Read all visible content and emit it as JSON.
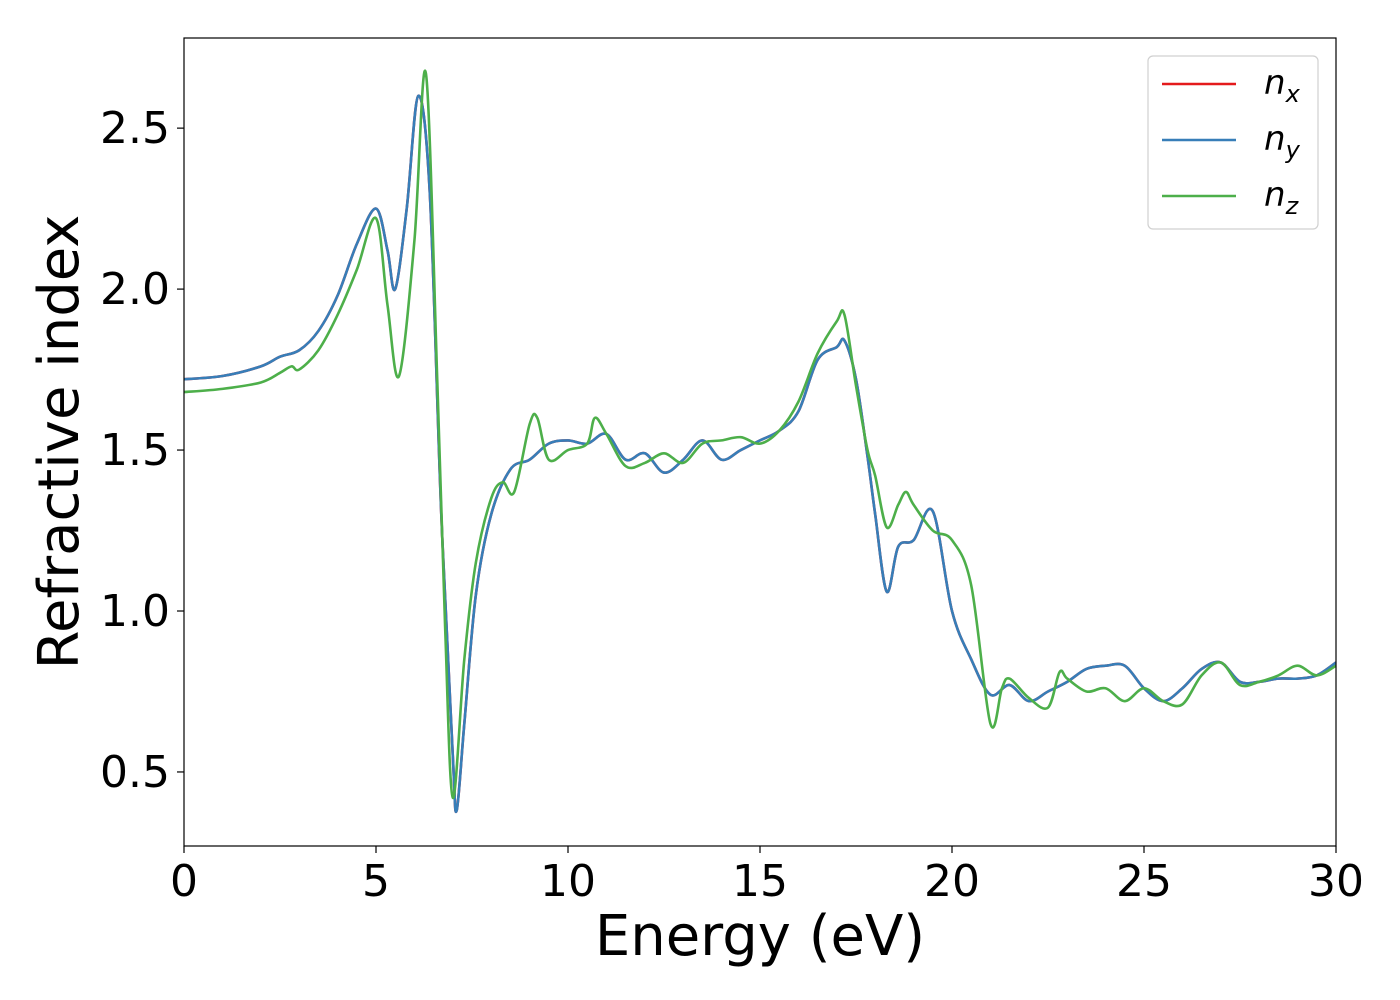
{
  "chart_data": {
    "type": "line",
    "xlabel": "Energy (eV)",
    "ylabel": "Refractive index",
    "xlim": [
      0,
      30
    ],
    "ylim": [
      0.27,
      2.78
    ],
    "xticks": [
      0,
      5,
      10,
      15,
      20,
      25,
      30
    ],
    "xtick_labels": [
      "0",
      "5",
      "10",
      "15",
      "20",
      "25",
      "30"
    ],
    "yticks": [
      0.5,
      1.0,
      1.5,
      2.0,
      2.5
    ],
    "ytick_labels": [
      "0.5",
      "1.0",
      "1.5",
      "2.0",
      "2.5"
    ],
    "grid": false,
    "legend_position": "top-right",
    "series": [
      {
        "name": "n_x",
        "label_base": "n",
        "label_sub": "x",
        "color": "#e41a1c",
        "x": [
          0,
          1,
          2,
          2.5,
          3,
          3.5,
          4,
          4.5,
          5,
          5.3,
          5.5,
          5.8,
          6.1,
          6.4,
          6.7,
          7.0,
          7.1,
          7.3,
          7.6,
          8,
          8.5,
          9,
          9.5,
          10,
          10.5,
          11,
          11.5,
          12,
          12.5,
          13,
          13.5,
          14,
          14.5,
          15,
          15.5,
          16,
          16.5,
          17,
          17.2,
          17.5,
          17.8,
          18,
          18.3,
          18.6,
          19,
          19.5,
          20,
          20.5,
          21,
          21.5,
          22,
          22.5,
          23,
          23.5,
          24,
          24.5,
          25,
          25.5,
          26,
          26.5,
          27,
          27.5,
          28,
          28.5,
          29,
          29.5,
          30
        ],
        "y": [
          1.72,
          1.73,
          1.76,
          1.79,
          1.81,
          1.87,
          1.98,
          2.14,
          2.25,
          2.12,
          2.0,
          2.25,
          2.6,
          2.3,
          1.3,
          0.55,
          0.38,
          0.65,
          1.05,
          1.3,
          1.44,
          1.47,
          1.52,
          1.53,
          1.52,
          1.55,
          1.47,
          1.49,
          1.43,
          1.47,
          1.53,
          1.47,
          1.5,
          1.53,
          1.56,
          1.62,
          1.78,
          1.82,
          1.84,
          1.72,
          1.48,
          1.3,
          1.06,
          1.2,
          1.22,
          1.31,
          1.0,
          0.85,
          0.74,
          0.77,
          0.72,
          0.75,
          0.78,
          0.82,
          0.83,
          0.83,
          0.76,
          0.72,
          0.76,
          0.82,
          0.84,
          0.78,
          0.78,
          0.79,
          0.79,
          0.8,
          0.84
        ]
      },
      {
        "name": "n_y",
        "label_base": "n",
        "label_sub": "y",
        "color": "#377eb8",
        "x": [
          0,
          1,
          2,
          2.5,
          3,
          3.5,
          4,
          4.5,
          5,
          5.3,
          5.5,
          5.8,
          6.1,
          6.4,
          6.7,
          7.0,
          7.1,
          7.3,
          7.6,
          8,
          8.5,
          9,
          9.5,
          10,
          10.5,
          11,
          11.5,
          12,
          12.5,
          13,
          13.5,
          14,
          14.5,
          15,
          15.5,
          16,
          16.5,
          17,
          17.2,
          17.5,
          17.8,
          18,
          18.3,
          18.6,
          19,
          19.5,
          20,
          20.5,
          21,
          21.5,
          22,
          22.5,
          23,
          23.5,
          24,
          24.5,
          25,
          25.5,
          26,
          26.5,
          27,
          27.5,
          28,
          28.5,
          29,
          29.5,
          30
        ],
        "y": [
          1.72,
          1.73,
          1.76,
          1.79,
          1.81,
          1.87,
          1.98,
          2.14,
          2.25,
          2.12,
          2.0,
          2.25,
          2.6,
          2.3,
          1.3,
          0.55,
          0.38,
          0.65,
          1.05,
          1.3,
          1.44,
          1.47,
          1.52,
          1.53,
          1.52,
          1.55,
          1.47,
          1.49,
          1.43,
          1.47,
          1.53,
          1.47,
          1.5,
          1.53,
          1.56,
          1.62,
          1.78,
          1.82,
          1.84,
          1.72,
          1.48,
          1.3,
          1.06,
          1.2,
          1.22,
          1.31,
          1.0,
          0.85,
          0.74,
          0.77,
          0.72,
          0.75,
          0.78,
          0.82,
          0.83,
          0.83,
          0.76,
          0.72,
          0.76,
          0.82,
          0.84,
          0.78,
          0.78,
          0.79,
          0.79,
          0.8,
          0.84
        ]
      },
      {
        "name": "n_z",
        "label_base": "n",
        "label_sub": "z",
        "color": "#4daf4a",
        "x": [
          0,
          1,
          2,
          2.5,
          2.8,
          3,
          3.5,
          4,
          4.5,
          5,
          5.3,
          5.6,
          6.0,
          6.3,
          6.6,
          6.8,
          7.0,
          7.3,
          7.6,
          8,
          8.3,
          8.6,
          9,
          9.2,
          9.5,
          10,
          10.5,
          10.7,
          11,
          11.5,
          12,
          12.5,
          13,
          13.5,
          14,
          14.5,
          15,
          15.5,
          16,
          16.5,
          17,
          17.2,
          17.5,
          17.8,
          18,
          18.3,
          18.6,
          18.8,
          19,
          19.5,
          20,
          20.5,
          21,
          21.3,
          21.5,
          22,
          22.5,
          22.8,
          23,
          23.5,
          24,
          24.5,
          25,
          25.5,
          26,
          26.5,
          27,
          27.5,
          28,
          28.5,
          29,
          29.5,
          30
        ],
        "y": [
          1.68,
          1.69,
          1.71,
          1.74,
          1.76,
          1.75,
          1.81,
          1.92,
          2.06,
          2.22,
          1.95,
          1.73,
          2.15,
          2.67,
          1.7,
          0.95,
          0.42,
          0.85,
          1.15,
          1.35,
          1.4,
          1.37,
          1.58,
          1.6,
          1.47,
          1.5,
          1.52,
          1.6,
          1.55,
          1.45,
          1.46,
          1.49,
          1.46,
          1.52,
          1.53,
          1.54,
          1.52,
          1.56,
          1.65,
          1.8,
          1.9,
          1.92,
          1.7,
          1.5,
          1.42,
          1.26,
          1.33,
          1.37,
          1.33,
          1.25,
          1.22,
          1.08,
          0.65,
          0.76,
          0.79,
          0.73,
          0.7,
          0.81,
          0.79,
          0.75,
          0.76,
          0.72,
          0.76,
          0.72,
          0.71,
          0.8,
          0.84,
          0.77,
          0.78,
          0.8,
          0.83,
          0.8,
          0.83
        ]
      }
    ]
  }
}
